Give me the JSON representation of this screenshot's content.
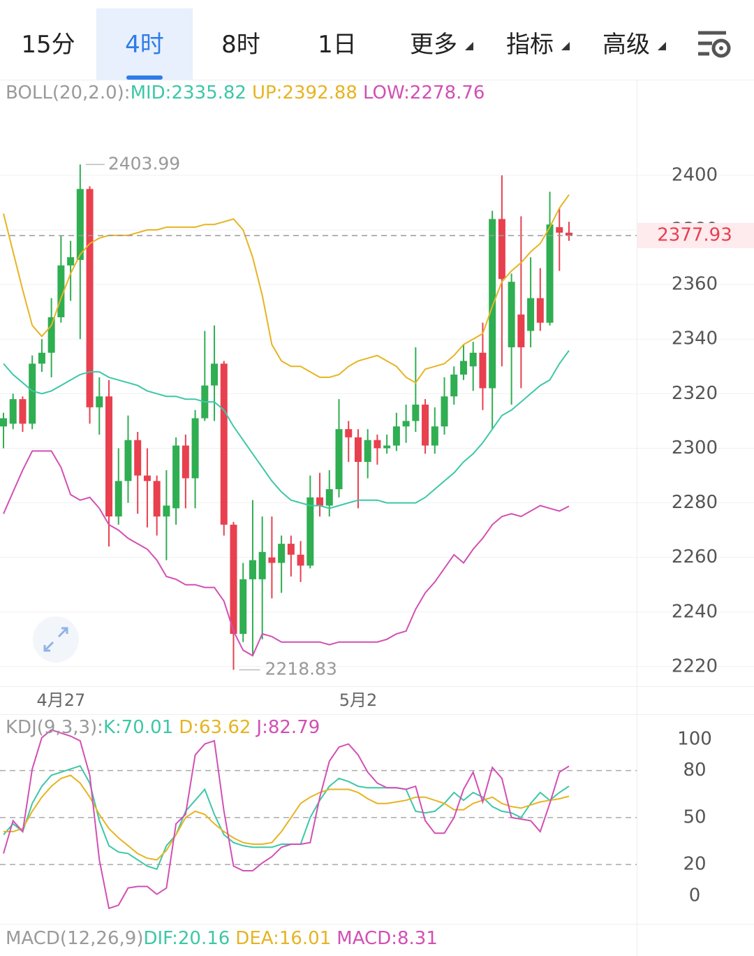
{
  "tabs": [
    {
      "label": "15分",
      "dropdown": false
    },
    {
      "label": "4时",
      "dropdown": false
    },
    {
      "label": "8时",
      "dropdown": false
    },
    {
      "label": "1日",
      "dropdown": false
    },
    {
      "label": "更多",
      "dropdown": true
    },
    {
      "label": "指标",
      "dropdown": true
    },
    {
      "label": "高级",
      "dropdown": true
    }
  ],
  "selected_tab": 1,
  "chart_data": [
    {
      "type": "candlestick",
      "indicator": "BOLL(20,2.0):",
      "categories": [
        null,
        null,
        null,
        null,
        null,
        null,
        "4月27",
        null,
        null,
        null,
        null,
        null,
        null,
        null,
        null,
        null,
        null,
        null,
        null,
        null,
        null,
        null,
        null,
        null,
        null,
        null,
        null,
        null,
        null,
        null,
        null,
        null,
        null,
        null,
        null,
        null,
        null,
        "5月2",
        null,
        null,
        null,
        null,
        null,
        null,
        null,
        null,
        null,
        null,
        null,
        null,
        null,
        null,
        null,
        null,
        null,
        null,
        null,
        null,
        null,
        null
      ],
      "open": [
        2308,
        2309,
        2318,
        2309,
        2331,
        2335,
        2348,
        2367,
        2369,
        2395,
        2315,
        2319,
        2275,
        2288,
        2303,
        2290,
        2288,
        2275,
        2278,
        2301,
        2289,
        2311,
        2323,
        2331,
        2272,
        2232,
        2252,
        2252,
        2260,
        2258,
        2265,
        2261,
        2257,
        2282,
        2279,
        2285,
        2307,
        2304,
        2295,
        2303,
        2300,
        2301,
        2308,
        2310,
        2316,
        2301,
        2308,
        2319,
        2327,
        2330,
        2335,
        2322,
        2384,
        2337,
        2349,
        2343,
        2355,
        2346,
        2381,
        2379
      ],
      "high": [
        2313,
        2320,
        2319,
        2334,
        2340,
        2355,
        2378,
        2376,
        2403.99,
        2396,
        2326,
        2325,
        2300,
        2312,
        2306,
        2300,
        2290,
        2292,
        2304,
        2305,
        2314,
        2343,
        2345,
        2332,
        2273,
        2258,
        2281,
        2275,
        2275,
        2268,
        2268,
        2266,
        2290,
        2291,
        2292,
        2318,
        2310,
        2307,
        2307,
        2305,
        2305,
        2313,
        2316,
        2337,
        2318,
        2315,
        2326,
        2330,
        2338,
        2339,
        2346,
        2387,
        2400,
        2364,
        2385,
        2370,
        2366,
        2394,
        2388,
        2383
      ],
      "low": [
        2300,
        2307,
        2306,
        2307,
        2328,
        2326,
        2346,
        2354,
        2340,
        2309,
        2305,
        2264,
        2272,
        2280,
        2276,
        2271,
        2268,
        2259,
        2272,
        2278,
        2278,
        2310,
        2310,
        2268,
        2218.83,
        2229,
        2224,
        2230,
        2245,
        2247,
        2253,
        2251,
        2256,
        2275,
        2275,
        2282,
        2295,
        2278,
        2289,
        2294,
        2298,
        2299,
        2302,
        2306,
        2298,
        2298,
        2305,
        2316,
        2325,
        2321,
        2314,
        2307,
        2330,
        2316,
        2322,
        2337,
        2343,
        2345,
        2365,
        2376
      ],
      "close": [
        2311,
        2318,
        2309,
        2331,
        2335,
        2348,
        2367,
        2370,
        2395,
        2315,
        2319,
        2275,
        2288,
        2303,
        2290,
        2288,
        2275,
        2279,
        2301,
        2289,
        2311,
        2323,
        2331,
        2272,
        2232,
        2252,
        2259,
        2262,
        2258,
        2265,
        2261,
        2257,
        2282,
        2279,
        2285,
        2307,
        2304,
        2295,
        2303,
        2300,
        2301,
        2308,
        2310,
        2316,
        2301,
        2308,
        2319,
        2327,
        2332,
        2335,
        2322,
        2384,
        2362,
        2361,
        2337,
        2355,
        2346,
        2382,
        2379,
        2377.93
      ],
      "up_color": "#2fae52",
      "down_color": "#e8404f",
      "series": [
        {
          "name": "MID:2335.82",
          "color": "#3dc7a6",
          "values": [
            2331,
            2327,
            2324,
            2321,
            2320,
            2321,
            2323,
            2325,
            2327,
            2328,
            2328,
            2326,
            2325,
            2324,
            2323,
            2321,
            2320,
            2319,
            2319,
            2318,
            2318,
            2317,
            2317,
            2314,
            2308,
            2303,
            2298,
            2293,
            2288,
            2284,
            2281,
            2280,
            2279,
            2279,
            2278,
            2279,
            2280,
            2281,
            2281,
            2281,
            2280,
            2280,
            2280,
            2280,
            2282,
            2285,
            2288,
            2291,
            2295,
            2298,
            2302,
            2307,
            2312,
            2314,
            2317,
            2320,
            2323,
            2325,
            2331,
            2335.82
          ]
        },
        {
          "name": "UP:2392.88",
          "color": "#e6b422",
          "values": [
            2386,
            2372,
            2358,
            2345,
            2341,
            2345,
            2355,
            2364,
            2371,
            2375,
            2377,
            2378,
            2378,
            2378,
            2379,
            2380,
            2380,
            2381,
            2381,
            2381,
            2381,
            2382,
            2382,
            2383,
            2384,
            2380,
            2370,
            2356,
            2338,
            2332,
            2330,
            2330,
            2328,
            2326,
            2326,
            2327,
            2330,
            2332,
            2333,
            2334,
            2332,
            2330,
            2326,
            2324,
            2329,
            2330,
            2331,
            2334,
            2338,
            2340,
            2342,
            2352,
            2361,
            2365,
            2368,
            2372,
            2375,
            2381,
            2388,
            2392.88
          ]
        },
        {
          "name": "LOW:2278.76",
          "color": "#d24fb4",
          "values": [
            2276,
            2284,
            2292,
            2299,
            2299,
            2299,
            2293,
            2283,
            2281,
            2282,
            2278,
            2272,
            2270,
            2267,
            2265,
            2263,
            2259,
            2253,
            2252,
            2250,
            2250,
            2249,
            2249,
            2244,
            2233,
            2226,
            2224,
            2232,
            2231,
            2229,
            2229,
            2229,
            2229,
            2229,
            2228,
            2229,
            2229,
            2229,
            2229,
            2229,
            2230,
            2232,
            2233,
            2241,
            2247,
            2251,
            2256,
            2261,
            2258,
            2263,
            2267,
            2272,
            2275,
            2276,
            2275,
            2277,
            2279,
            2278,
            2277,
            2278.76
          ]
        }
      ],
      "ylim": [
        2212.8,
        2434.8
      ],
      "yticks": [
        2220,
        2240,
        2260,
        2280,
        2300,
        2320,
        2340,
        2360,
        2380,
        2400
      ],
      "grid": true
    },
    {
      "type": "line",
      "indicator": "KDJ(9,3,3):",
      "series": [
        {
          "name": "K:70.01",
          "color": "#3dc7a6",
          "values": [
            39,
            46,
            41,
            59,
            70,
            77,
            79,
            81,
            83,
            72,
            48,
            32,
            28,
            27,
            23,
            19,
            17,
            32,
            39,
            54,
            61,
            68,
            52,
            39,
            34,
            32,
            31,
            31,
            31,
            33,
            33,
            33,
            50,
            61,
            70,
            75,
            73,
            70,
            69,
            69,
            69,
            69,
            68,
            54,
            53,
            54,
            59,
            66,
            61,
            66,
            63,
            57,
            54,
            53,
            50,
            59,
            66,
            61,
            66,
            70.01
          ]
        },
        {
          "name": "D:63.62",
          "color": "#e6b422",
          "values": [
            41,
            41,
            43,
            54,
            63,
            70,
            75,
            77,
            72,
            63,
            52,
            43,
            37,
            32,
            27,
            24,
            23,
            29,
            39,
            50,
            54,
            52,
            46,
            41,
            37,
            34,
            33,
            33,
            34,
            41,
            50,
            59,
            63,
            66,
            68,
            68,
            68,
            66,
            62,
            59,
            59,
            60,
            61,
            63,
            63,
            61,
            59,
            55,
            55,
            59,
            61,
            63,
            59,
            57,
            56,
            58,
            60,
            61,
            62,
            63.62
          ]
        },
        {
          "name": "J:82.79",
          "color": "#d24fb4",
          "values": [
            27,
            48,
            41,
            81,
            101,
            106,
            104,
            102,
            99,
            77,
            23,
            -8,
            -6,
            5,
            6,
            6,
            1,
            5,
            46,
            52,
            90,
            97,
            99,
            54,
            19,
            16,
            16,
            21,
            25,
            31,
            33,
            33,
            34,
            63,
            86,
            95,
            97,
            90,
            79,
            72,
            69,
            69,
            68,
            70,
            48,
            40,
            40,
            50,
            68,
            79,
            60,
            82,
            75,
            50,
            49,
            48,
            41,
            59,
            79,
            82.79
          ]
        }
      ],
      "ylim": [
        -17.9,
        116
      ],
      "yticks": [
        0,
        20,
        50,
        80,
        100
      ]
    },
    {
      "type": "macd",
      "indicator": "MACD(12,26,9)",
      "series": [
        {
          "name": "DIF:20.16",
          "color": "#3dc7a6"
        },
        {
          "name": "DEA:16.01",
          "color": "#e6b422"
        },
        {
          "name": "MACD:8.31",
          "color": "#d24fb4"
        }
      ]
    }
  ]
}
